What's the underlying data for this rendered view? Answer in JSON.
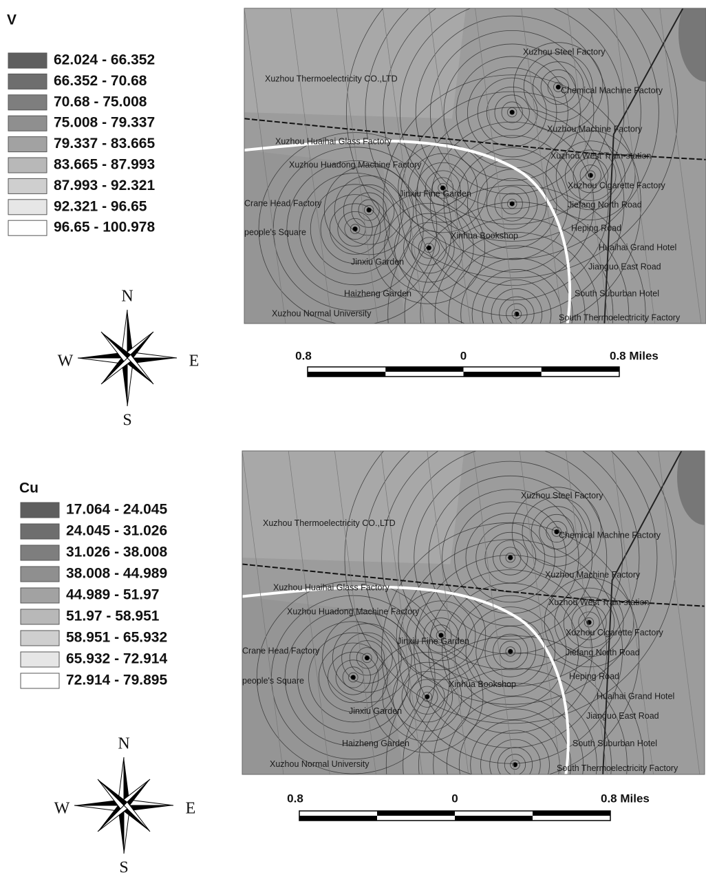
{
  "panels": [
    {
      "legend": {
        "title": "V",
        "classes": [
          {
            "label": "62.024 - 66.352",
            "color": "#5e5e5e"
          },
          {
            "label": "66.352 - 70.68",
            "color": "#6e6e6e"
          },
          {
            "label": "70.68 - 75.008",
            "color": "#7e7e7e"
          },
          {
            "label": "75.008 - 79.337",
            "color": "#8f8f8f"
          },
          {
            "label": "79.337 - 83.665",
            "color": "#a2a2a2"
          },
          {
            "label": "83.665 - 87.993",
            "color": "#b8b8b8"
          },
          {
            "label": "87.993 - 92.321",
            "color": "#cfcfcf"
          },
          {
            "label": "92.321 - 96.65",
            "color": "#e6e6e6"
          },
          {
            "label": "96.65 - 100.978",
            "color": "#ffffff"
          }
        ]
      },
      "compass": {
        "north": "N",
        "west": "W",
        "east": "E",
        "south": "S"
      },
      "scale_bar": {
        "left": "0.8",
        "center": "0",
        "right": "0.8 Miles"
      },
      "map_labels": [
        "Xuzhou Steel Factory",
        "Xuzhou Thermoelectricity CO.,LTD",
        "Chemical Machine Factory",
        "Xuzhou Machine Factory",
        "Xuzhou Huaihai Glass Factory",
        "Xuzhou West Train-station",
        "Xuzhou Huadong Machine Factory",
        "Xuzhou Cigarette Factory",
        "Jinxiu Fine Garden",
        "Crane Head Factory",
        "Jiefang North Road",
        "Heping Road",
        "people's Square",
        "Xinhua Bookshop",
        "Huaihai Grand Hotel",
        "Jianguo East Road",
        "Jinxiu Garden",
        "Haizheng Garden",
        "South Suburban Hotel",
        "Xuzhou Normal University",
        "South Thermoelectricity Factory"
      ]
    },
    {
      "legend": {
        "title": "Cu",
        "classes": [
          {
            "label": "17.064 - 24.045",
            "color": "#5e5e5e"
          },
          {
            "label": "24.045 - 31.026",
            "color": "#6e6e6e"
          },
          {
            "label": "31.026 - 38.008",
            "color": "#7e7e7e"
          },
          {
            "label": "38.008 - 44.989",
            "color": "#8f8f8f"
          },
          {
            "label": "44.989 - 51.97",
            "color": "#a2a2a2"
          },
          {
            "label": "51.97 - 58.951",
            "color": "#b8b8b8"
          },
          {
            "label": "58.951 - 65.932",
            "color": "#cfcfcf"
          },
          {
            "label": "65.932 - 72.914",
            "color": "#e6e6e6"
          },
          {
            "label": "72.914 - 79.895",
            "color": "#ffffff"
          }
        ]
      },
      "compass": {
        "north": "N",
        "west": "W",
        "east": "E",
        "south": "S"
      },
      "scale_bar": {
        "left": "0.8",
        "center": "0",
        "right": "0.8 Miles"
      },
      "map_labels": [
        "Xuzhou Steel Factory",
        "Xuzhou Thermoelectricity CO.,LTD",
        "Chemical Machine Factory",
        "Xuzhou Machine Factory",
        "Xuzhou Huaihai Glass Factory",
        "Xuzhou West Train-station",
        "Xuzhou Huadong Machine Factory",
        "Xuzhou Cigarette Factory",
        "Jinxiu Fine Garden",
        "Crane Head Factory",
        "Jiefang North Road",
        "Heping Road",
        "people's Square",
        "Xinhua Bookshop",
        "Huaihai Grand Hotel",
        "Jianguo East Road",
        "Jinxiu Garden",
        "Haizheng Garden",
        "South Suburban Hotel",
        "Xuzhou Normal University",
        "South Thermoelectricity Factory"
      ]
    }
  ]
}
